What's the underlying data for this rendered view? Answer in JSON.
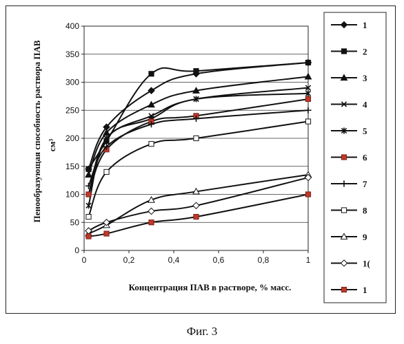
{
  "caption": "Фиг. 3",
  "chart_data": {
    "type": "line",
    "xlabel": "Концентрация ПАВ в растворе, % масс.",
    "ylabel": "Пенообразующая способность раствора ПАВ",
    "yunit": "см³",
    "xlim": [
      0,
      1
    ],
    "ylim": [
      0,
      400
    ],
    "xticks": [
      "0",
      "0,2",
      "0,4",
      "0,6",
      "0,8",
      "1"
    ],
    "yticks": [
      "0",
      "50",
      "100",
      "150",
      "200",
      "250",
      "300",
      "350",
      "400"
    ],
    "grid": "horizontal",
    "legend_position": "right",
    "x": [
      0.02,
      0.1,
      0.3,
      0.5,
      1.0
    ],
    "series": [
      {
        "name": "1",
        "marker": "diamond-filled",
        "color": "#111111",
        "values": [
          145,
          220,
          285,
          315,
          335
        ]
      },
      {
        "name": "2",
        "marker": "square-filled",
        "color": "#111111",
        "values": [
          145,
          195,
          315,
          320,
          335
        ]
      },
      {
        "name": "3",
        "marker": "triangle-filled",
        "color": "#111111",
        "values": [
          135,
          210,
          260,
          285,
          310
        ]
      },
      {
        "name": "4",
        "marker": "x",
        "color": "#111111",
        "values": [
          100,
          200,
          240,
          270,
          290
        ]
      },
      {
        "name": "5",
        "marker": "x-star",
        "color": "#111111",
        "values": [
          80,
          200,
          235,
          270,
          280
        ]
      },
      {
        "name": "6",
        "marker": "square-red",
        "color": "#c0392b",
        "values": [
          100,
          180,
          230,
          240,
          270
        ]
      },
      {
        "name": "7",
        "marker": "plus",
        "color": "#111111",
        "values": [
          115,
          185,
          225,
          235,
          250
        ]
      },
      {
        "name": "8",
        "marker": "square-open",
        "color": "#111111",
        "values": [
          60,
          140,
          190,
          200,
          230
        ]
      },
      {
        "name": "9",
        "marker": "triangle-open",
        "color": "#111111",
        "values": [
          30,
          45,
          90,
          105,
          135
        ]
      },
      {
        "name": "1(",
        "marker": "diamond-open",
        "color": "#111111",
        "values": [
          35,
          50,
          70,
          80,
          130
        ]
      },
      {
        "name": "1",
        "marker": "square-red",
        "color": "#c0392b",
        "values": [
          25,
          30,
          50,
          60,
          100
        ]
      }
    ]
  }
}
